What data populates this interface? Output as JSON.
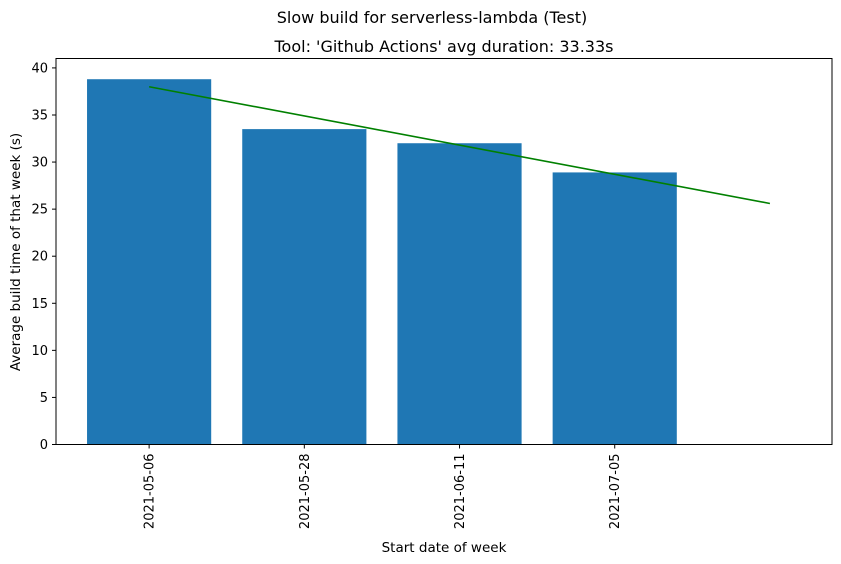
{
  "chart_data": {
    "type": "bar",
    "suptitle": "Slow build for serverless-lambda (Test)",
    "title": "Tool: 'Github Actions' avg duration: 33.33s",
    "xlabel": "Start date of week",
    "ylabel": "Average build time of that week (s)",
    "categories": [
      "2021-05-06",
      "2021-05-28",
      "2021-06-11",
      "2021-07-05"
    ],
    "values": [
      38.8,
      33.5,
      32.0,
      28.9
    ],
    "ylim": [
      0,
      41.0
    ],
    "yticks": [
      0,
      5,
      10,
      15,
      20,
      25,
      30,
      35,
      40
    ],
    "bar_color": "#1f77b4",
    "trend_line": {
      "color": "#008000",
      "x": [
        0,
        4
      ],
      "y": [
        38.0,
        25.6
      ]
    },
    "grid": false,
    "legend": "none"
  }
}
